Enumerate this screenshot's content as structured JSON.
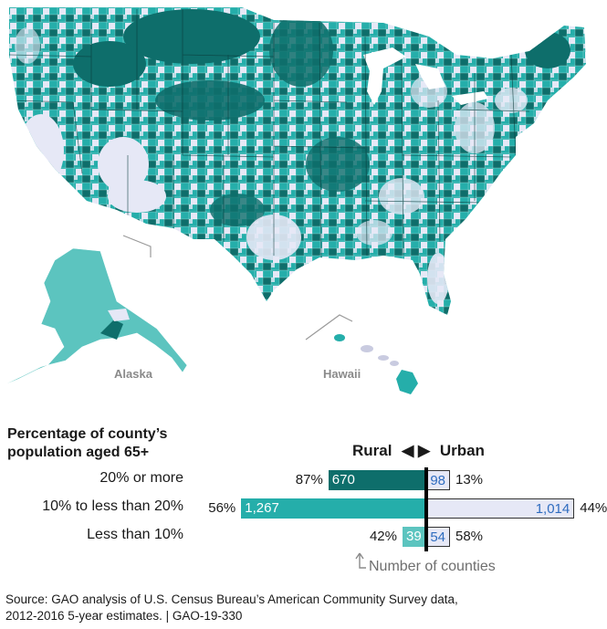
{
  "map": {
    "insets": {
      "alaska": "Alaska",
      "hawaii": "Hawaii"
    },
    "colors": {
      "high": "#0e6e6b",
      "mid": "#25aeaa",
      "low": "#e6e8f6",
      "mid_alaska": "#5cc4bf",
      "state_border": "#0a3a3a",
      "inset_line": "#9a9a9a"
    },
    "legend_categories": [
      "20% or more",
      "10% to less than 20%",
      "Less than 10%"
    ]
  },
  "legend": {
    "title_line1": "Percentage of county’s",
    "title_line2": "population aged 65+"
  },
  "direction": {
    "rural": "Rural",
    "arrows": "◀ ▶",
    "urban": "Urban"
  },
  "chart_data": {
    "type": "bar",
    "categories": [
      "20% or more",
      "10% to less than 20%",
      "Less than 10%"
    ],
    "series": [
      {
        "name": "Rural",
        "values": [
          670,
          1267,
          39
        ],
        "value_labels": [
          "670",
          "1,267",
          "39"
        ],
        "percent_labels": [
          "87%",
          "56%",
          "42%"
        ],
        "percents": [
          87,
          56,
          42
        ]
      },
      {
        "name": "Urban",
        "values": [
          98,
          1014,
          54
        ],
        "value_labels": [
          "98",
          "1,014",
          "54"
        ],
        "percent_labels": [
          "13%",
          "44%",
          "58%"
        ],
        "percents": [
          13,
          44,
          58
        ]
      }
    ],
    "colors": {
      "rural": [
        "#0e6e6b",
        "#25aeaa",
        "#5cc4bf"
      ],
      "urban": "#e6e8f6"
    },
    "note": "Number of counties"
  },
  "source": {
    "line1": "Source: GAO analysis of U.S. Census Bureau’s American Community Survey data,",
    "line2": "2012-2016 5-year estimates.  |  GAO-19-330"
  }
}
